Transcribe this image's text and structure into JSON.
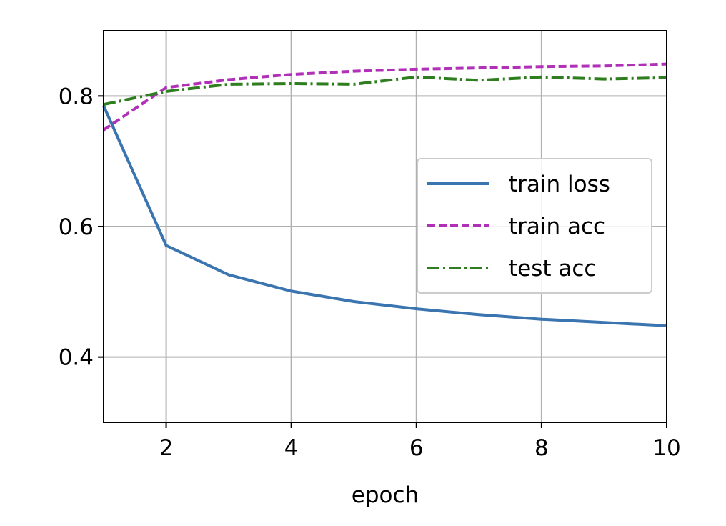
{
  "chart_data": {
    "type": "line",
    "title": "",
    "xlabel": "epoch",
    "ylabel": "",
    "xlim": [
      1,
      10
    ],
    "ylim": [
      0.3,
      0.9
    ],
    "xticks": [
      2,
      4,
      6,
      8,
      10
    ],
    "xtick_labels": [
      "2",
      "4",
      "6",
      "8",
      "10"
    ],
    "yticks": [
      0.4,
      0.6,
      0.8
    ],
    "ytick_labels": [
      "0.4",
      "0.6",
      "0.8"
    ],
    "grid": true,
    "legend_position": "center-right",
    "x": [
      1,
      2,
      3,
      4,
      5,
      6,
      7,
      8,
      9,
      10
    ],
    "series": [
      {
        "name": "train loss",
        "color": "#3b75af",
        "dash": "solid",
        "values": [
          0.785,
          0.571,
          0.526,
          0.501,
          0.485,
          0.474,
          0.465,
          0.458,
          0.453,
          0.448
        ]
      },
      {
        "name": "train acc",
        "color": "#b030b8",
        "dash": "dashed",
        "values": [
          0.748,
          0.813,
          0.825,
          0.833,
          0.838,
          0.841,
          0.843,
          0.845,
          0.846,
          0.849
        ]
      },
      {
        "name": "test acc",
        "color": "#2e7d1f",
        "dash": "dashdot",
        "values": [
          0.787,
          0.807,
          0.818,
          0.819,
          0.818,
          0.829,
          0.824,
          0.829,
          0.826,
          0.828
        ]
      }
    ]
  }
}
